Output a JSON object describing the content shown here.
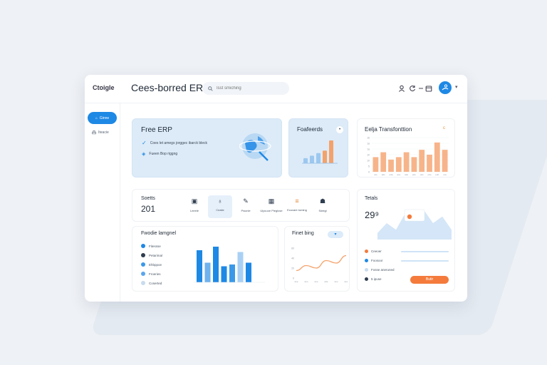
{
  "header": {
    "logo_text": "Ctoigle",
    "app_title": "Cees-borred ERP",
    "search_placeholder": "Isst smiching",
    "icons": [
      "user-icon",
      "refresh-icon",
      "minus-icon",
      "calendar-icon"
    ]
  },
  "sidebar": {
    "active_label": "Ginne",
    "items": [
      {
        "label": "Iteacie",
        "icon": "print-icon"
      }
    ]
  },
  "free_erp": {
    "title": "Free ERP",
    "features": [
      "Coes let amegs jorggec ibarck bleck",
      "Fueen Bop riggng"
    ]
  },
  "features_card": {
    "title": "Foafeerds"
  },
  "trend_card": {
    "title": "Eelja Transfonttion",
    "badge": "c"
  },
  "stats": {
    "label": "Soetts",
    "value": "201",
    "tiles": [
      "Leeele",
      "Ceaite",
      "Pwonle",
      "Ulpcuoe Pieglose",
      "Ecovare toming",
      "Sdeigl"
    ]
  },
  "product_card": {
    "title": "Fwodie lamgnel",
    "items": [
      "Fitessse",
      "Petarimal",
      "Ehbppoe",
      "Froeries",
      "Coserted"
    ]
  },
  "line_card": {
    "title": "Finet bing",
    "dropdown": "▾"
  },
  "totals": {
    "title": "Tetals",
    "value": "29⁹",
    "rows": [
      "Ceeoer",
      "Foosoor",
      "Fosse aneruned",
      "5 ipuse"
    ],
    "button_label": "Butir"
  },
  "chart_data": [
    {
      "type": "bar",
      "title": "Foafeerds",
      "values": [
        2,
        3,
        4,
        5,
        9
      ],
      "colors": [
        "#9cc8ef",
        "#9cc8ef",
        "#9cc8ef",
        "#f4a26b",
        "#f4a26b"
      ]
    },
    {
      "type": "bar",
      "title": "Eelja Transfonttion",
      "categories": [
        "ato",
        "ado",
        "eda",
        "aoo",
        "ado",
        "edo",
        "odo",
        "odo",
        "edo",
        "oco"
      ],
      "values": [
        6,
        8,
        5,
        6,
        8,
        6,
        9,
        7,
        12,
        9
      ],
      "ylim": [
        0,
        14
      ],
      "ytick_labels": [
        "16",
        "1a",
        "1a",
        "10",
        "10",
        "5",
        "0"
      ],
      "grid": true,
      "color": "#f7b48a"
    },
    {
      "type": "bar",
      "title": "Fwodie lamgnel",
      "values": [
        9,
        5.5,
        10,
        4.5,
        5,
        8.5,
        5.5
      ],
      "colors": [
        "#1e88e5",
        "#6fb2ee",
        "#1e88e5",
        "#1e88e5",
        "#3b98e8",
        "#a9d0f4",
        "#1e88e5"
      ],
      "ylim": [
        0,
        10
      ]
    },
    {
      "type": "line",
      "title": "Finet bing",
      "x": [
        "aoe",
        "aoo",
        "aoe",
        "ade",
        "aoo",
        "aoe"
      ],
      "values": [
        3,
        5,
        4,
        7,
        6,
        9
      ],
      "ylim": [
        0,
        12
      ],
      "ytick_labels": [
        "60",
        "40",
        "20",
        "0"
      ],
      "color": "#f4a26b"
    },
    {
      "type": "area",
      "title": "Tetals",
      "values": [
        2,
        5,
        3,
        8,
        6,
        9,
        5,
        7,
        3
      ],
      "ylim": [
        0,
        10
      ],
      "color": "#cfe3f6"
    }
  ]
}
